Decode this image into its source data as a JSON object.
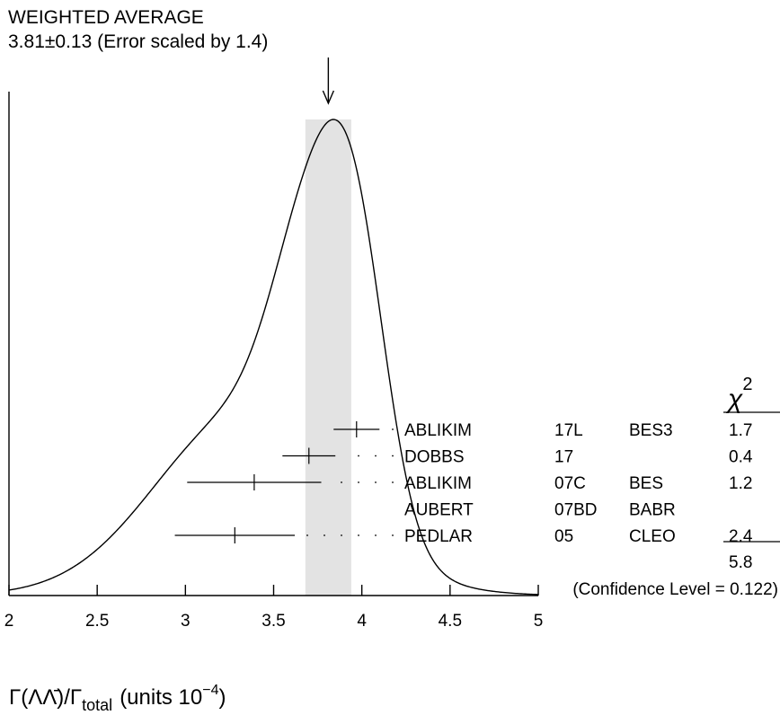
{
  "chart_data": {
    "type": "ideogram",
    "title_line1": "WEIGHTED AVERAGE",
    "title_line2": "3.81±0.13 (Error scaled by 1.4)",
    "weighted_average": 3.81,
    "weighted_error": 0.13,
    "xlim": [
      2,
      5
    ],
    "x_ticks": [
      "2",
      "2.5",
      "3",
      "3.5",
      "4",
      "4.5",
      "5"
    ],
    "x_tick_values": [
      2,
      2.5,
      3,
      3.5,
      4,
      4.5,
      5
    ],
    "xlabel_main": "Γ(ΛΛ̄)/Γ",
    "xlabel_sub": "total",
    "xlabel_units": "(units 10",
    "xlabel_exp": "−4",
    "xlabel_close": ")",
    "chi2_header": "χ",
    "chi2_header_exp": "2",
    "measurements": [
      {
        "author": "ABLIKIM",
        "year": "17L",
        "experiment": "BES3",
        "value": 3.97,
        "error": 0.13,
        "chi2": "1.7"
      },
      {
        "author": "DOBBS",
        "year": "17",
        "experiment": "",
        "value": 3.7,
        "error": 0.15,
        "chi2": "0.4"
      },
      {
        "author": "ABLIKIM",
        "year": "07C",
        "experiment": "BES",
        "value": 3.39,
        "error": 0.38,
        "chi2": "1.2"
      },
      {
        "author": "AUBERT",
        "year": "07BD",
        "experiment": "BABR",
        "value": null,
        "error": null,
        "chi2": ""
      },
      {
        "author": "PEDLAR",
        "year": "05",
        "experiment": "CLEO",
        "value": 3.28,
        "error": 0.34,
        "chi2": "2.4"
      }
    ],
    "chi2_total": "5.8",
    "confidence_level": "(Confidence Level = 0.122)"
  }
}
